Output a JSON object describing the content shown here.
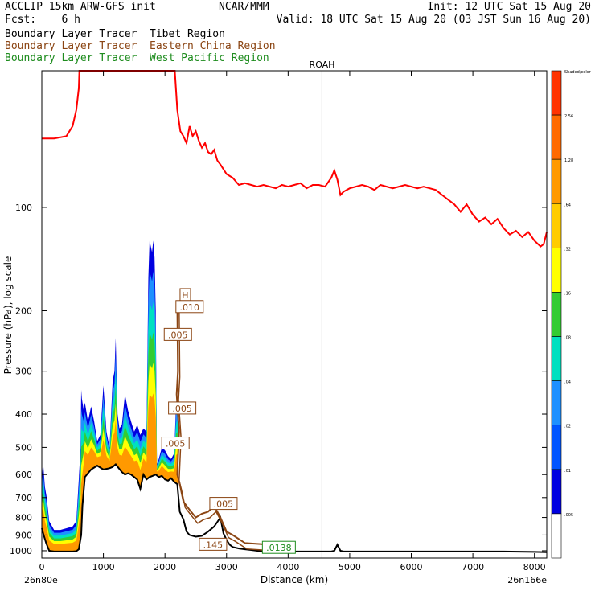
{
  "header": {
    "line1_left": "ACCLIP 15km ARW-GFS init",
    "line1_center": "NCAR/MMM",
    "line1_right": "Init: 12 UTC Sat 15 Aug 20",
    "line2_left": "Fcst:    6 h",
    "line2_right": "Valid: 18 UTC Sat 15 Aug 20 (03 JST Sun 16 Aug 20)",
    "tracer_tibet": "Boundary Layer Tracer  Tibet Region",
    "tracer_east_china": "Boundary Layer Tracer  Eastern China Region",
    "tracer_west_pacific": "Boundary Layer Tracer  West Pacific Region"
  },
  "colors": {
    "tibet_text": "#000000",
    "east_china": "#8b4513",
    "west_pacific": "#1e8c1e",
    "tropopause": "#ff0000",
    "terrain": "#000000"
  },
  "chart_data": {
    "type": "area",
    "xlabel": "Distance (km)",
    "ylabel": "Pressure (hPa), log scale",
    "xlim": [
      0,
      8200
    ],
    "ylim": [
      1050,
      40
    ],
    "y_scale": "log",
    "x_ticks": [
      0,
      1000,
      2000,
      3000,
      4000,
      5000,
      6000,
      7000,
      8000
    ],
    "x_tick_labels": [
      "0",
      "1000",
      "2000",
      "3000",
      "4000",
      "5000",
      "6000",
      "7000",
      "8000"
    ],
    "y_ticks": [
      100,
      200,
      300,
      400,
      500,
      600,
      700,
      800,
      900,
      1000
    ],
    "y_tick_labels": [
      "100",
      "200",
      "300",
      "400",
      "500",
      "600",
      "700",
      "800",
      "900",
      "1000"
    ],
    "endpoint_left": "26n80e",
    "endpoint_right": "26n166e",
    "station_marker": {
      "label": "ROAH",
      "x": 4550
    },
    "colorbar": {
      "levels": [
        "Shaded/color",
        "2.56",
        "1.28",
        ".64",
        ".32",
        ".16",
        ".08",
        ".04",
        ".02",
        ".01",
        ".005"
      ],
      "colors": [
        "#ff3300",
        "#ff6a00",
        "#ff9900",
        "#ffcc00",
        "#ffff00",
        "#33cc33",
        "#00e0c0",
        "#1e90ff",
        "#0055ff",
        "#0000e0",
        "#ffffff"
      ]
    },
    "terrain": {
      "x": [
        0,
        30,
        70,
        120,
        200,
        300,
        400,
        500,
        560,
        600,
        640,
        660,
        700,
        800,
        900,
        1000,
        1100,
        1150,
        1200,
        1250,
        1300,
        1350,
        1400,
        1450,
        1500,
        1550,
        1600,
        1650,
        1700,
        1750,
        1800,
        1850,
        1900,
        1950,
        2000,
        2050,
        2100,
        2150,
        2200,
        2220,
        2240,
        2300,
        2350,
        2400,
        2500,
        2600,
        2700,
        2800,
        2900,
        2950,
        3000,
        3050,
        3100,
        3200,
        3300,
        3400,
        3500,
        3600,
        3800,
        4000,
        4200,
        4400,
        4600,
        4700,
        4750,
        4800,
        4850,
        4900,
        5000,
        5500,
        6000,
        6500,
        7000,
        7500,
        8000,
        8200
      ],
      "p": [
        860,
        900,
        950,
        1000,
        1005,
        1005,
        1005,
        1005,
        1003,
        990,
        900,
        740,
        610,
        580,
        565,
        580,
        575,
        570,
        560,
        575,
        590,
        600,
        595,
        600,
        610,
        620,
        660,
        600,
        620,
        610,
        605,
        600,
        610,
        605,
        620,
        625,
        615,
        630,
        640,
        700,
        770,
        810,
        880,
        900,
        910,
        905,
        880,
        850,
        800,
        890,
        930,
        960,
        975,
        985,
        990,
        995,
        1000,
        1000,
        1000,
        1005,
        1005,
        1005,
        1005,
        1005,
        1000,
        960,
        1000,
        1005,
        1005,
        1005,
        1005,
        1005,
        1005,
        1005,
        1008,
        1010
      ]
    },
    "tibet_tracer_top": {
      "x": [
        0,
        20,
        50,
        80,
        120,
        200,
        300,
        400,
        500,
        560,
        600,
        630,
        640,
        650,
        680,
        700,
        750,
        800,
        850,
        900,
        950,
        1000,
        1050,
        1100,
        1150,
        1180,
        1200,
        1230,
        1260,
        1300,
        1350,
        1400,
        1450,
        1500,
        1550,
        1600,
        1650,
        1700,
        1730,
        1750,
        1770,
        1790,
        1810,
        1830,
        1850,
        1870,
        1900,
        1950,
        2000,
        2050,
        2100,
        2150,
        2180,
        2200,
        2220
      ],
      "p": [
        620,
        550,
        650,
        700,
        820,
        870,
        870,
        860,
        850,
        820,
        620,
        500,
        340,
        360,
        390,
        370,
        420,
        380,
        420,
        480,
        460,
        330,
        450,
        500,
        320,
        300,
        240,
        400,
        440,
        430,
        350,
        390,
        420,
        450,
        430,
        460,
        440,
        450,
        160,
        125,
        130,
        135,
        125,
        140,
        200,
        560,
        540,
        500,
        510,
        530,
        540,
        520,
        370,
        360,
        420
      ]
    },
    "tropopause": {
      "x": [
        0,
        200,
        400,
        500,
        560,
        600,
        610,
        620,
        640,
        2150,
        2160,
        2200,
        2250,
        2300,
        2350,
        2400,
        2450,
        2500,
        2550,
        2600,
        2650,
        2700,
        2750,
        2800,
        2850,
        2900,
        3000,
        3100,
        3200,
        3300,
        3400,
        3500,
        3600,
        3700,
        3800,
        3900,
        4000,
        4100,
        4200,
        4300,
        4400,
        4500,
        4600,
        4700,
        4750,
        4800,
        4850,
        4900,
        5000,
        5100,
        5200,
        5300,
        5400,
        5500,
        5600,
        5700,
        5800,
        5900,
        6000,
        6100,
        6200,
        6300,
        6400,
        6500,
        6600,
        6700,
        6800,
        6900,
        7000,
        7100,
        7200,
        7300,
        7400,
        7500,
        7600,
        7700,
        7800,
        7900,
        8000,
        8100,
        8150,
        8200
      ],
      "p": [
        63,
        63,
        62,
        58,
        52,
        45,
        40,
        38,
        36,
        36,
        38,
        52,
        60,
        62,
        65,
        58,
        62,
        60,
        64,
        67,
        65,
        69,
        70,
        68,
        73,
        75,
        80,
        82,
        86,
        85,
        86,
        87,
        86,
        87,
        88,
        86,
        87,
        86,
        85,
        88,
        86,
        86,
        87,
        82,
        78,
        83,
        92,
        90,
        88,
        87,
        86,
        87,
        89,
        86,
        87,
        88,
        87,
        86,
        87,
        88,
        87,
        88,
        89,
        92,
        95,
        98,
        103,
        98,
        105,
        110,
        107,
        112,
        108,
        115,
        120,
        117,
        122,
        118,
        125,
        130,
        128,
        118
      ]
    },
    "east_china_labels": [
      {
        "text": "H",
        "x": 2330,
        "p": 180
      },
      {
        "text": ".010",
        "x": 2400,
        "p": 195
      },
      {
        "text": ".005",
        "x": 2210,
        "p": 235
      },
      {
        "text": ".005",
        "x": 2280,
        "p": 385
      },
      {
        "text": ".005",
        "x": 2170,
        "p": 487
      },
      {
        "text": ".005",
        "x": 2950,
        "p": 730
      },
      {
        "text": ".145",
        "x": 2780,
        "p": 960
      }
    ],
    "west_pacific_labels": [
      {
        "text": ".0138",
        "x": 3850,
        "p": 980
      }
    ]
  }
}
